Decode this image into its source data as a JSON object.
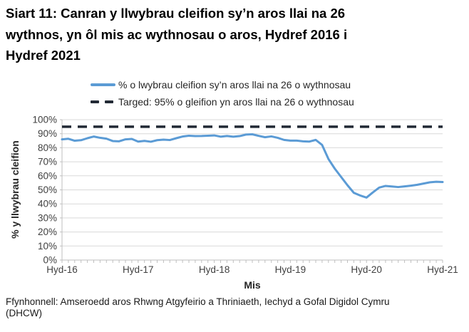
{
  "title": {
    "lines": [
      "Siart 11: Canran y llwybrau cleifion sy’n aros llai na 26",
      "wythnos, yn ôl mis ac wythnosau o aros, Hydref 2016 i",
      "Hydref 2021"
    ]
  },
  "legend": {
    "series_label": "% o lwybrau cleifion sy’n aros llai na 26 o wythnosau",
    "target_label": "Targed: 95% o gleifion yn aros llai na 26 o wythnosau"
  },
  "source": {
    "lines": [
      "Ffynhonnell: Amseroedd aros Rhwng Atgyfeirio a Thriniaeth, Iechyd a Gofal Digidol Cymru",
      "(DHCW)"
    ]
  },
  "colors": {
    "series": "#5B9BD5",
    "target": "#222A35",
    "grid": "#D9D9D9",
    "axis": "#BFBFBF",
    "tick_text": "#404040"
  },
  "chart_data": {
    "type": "line",
    "title": "",
    "xlabel": "Mis",
    "ylabel": "% y llwybrau cleifion",
    "ylim": [
      0,
      100
    ],
    "grid": true,
    "legend_position": "top",
    "x_interval": "monthly",
    "x_points": 61,
    "x_start_label": "Hyd-16",
    "x_end_label": "Hyd-21",
    "y_ticks": [
      0,
      10,
      20,
      30,
      40,
      50,
      60,
      70,
      80,
      90,
      100
    ],
    "y_tick_labels": [
      "0%",
      "10%",
      "20%",
      "30%",
      "40%",
      "50%",
      "60%",
      "70%",
      "80%",
      "90%",
      "100%"
    ],
    "x_tick_positions": [
      0,
      12,
      24,
      36,
      48,
      60
    ],
    "x_tick_labels": [
      "Hyd-16",
      "Hyd-17",
      "Hyd-18",
      "Hyd-19",
      "Hyd-20",
      "Hyd-21"
    ],
    "series": [
      {
        "name": "% o lwybrau cleifion sy’n aros llai na 26 o wythnosau",
        "type": "line",
        "color": "#5B9BD5",
        "values": [
          86.0,
          86.4,
          85.0,
          85.4,
          86.8,
          88.0,
          87.1,
          86.5,
          84.8,
          84.6,
          86.0,
          86.3,
          84.4,
          84.9,
          84.3,
          85.4,
          85.8,
          85.5,
          86.8,
          88.0,
          88.6,
          88.3,
          88.4,
          88.6,
          88.8,
          87.9,
          88.4,
          87.9,
          88.3,
          89.4,
          89.6,
          88.5,
          87.5,
          88.1,
          87.1,
          85.6,
          85.1,
          85.1,
          84.6,
          84.4,
          85.6,
          82.0,
          72.0,
          65.1,
          59.2,
          53.3,
          47.9,
          46.0,
          44.5,
          48.2,
          51.6,
          52.8,
          52.4,
          52.0,
          52.5,
          53.0,
          53.6,
          54.5,
          55.4,
          55.8,
          55.6
        ]
      },
      {
        "name": "Targed: 95% o gleifion yn aros llai na 26 o wythnosau",
        "type": "constant",
        "color": "#222A35",
        "value": 95
      }
    ]
  }
}
